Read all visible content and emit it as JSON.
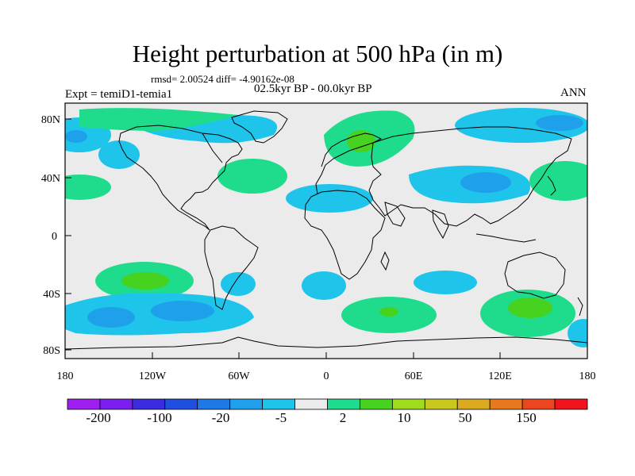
{
  "plot": {
    "title": "Height perturbation at 500 hPa (in m)",
    "stats": "rmsd= 2.00524  diff= -4.90162e-08",
    "experiment": "Expt = temiD1-temia1",
    "period": "02.5kyr BP - 00.0kyr BP",
    "season": "ANN"
  },
  "axes": {
    "lat_labels": [
      "80N",
      "40N",
      "0",
      "40S",
      "80S"
    ],
    "lon_labels": [
      "180",
      "120W",
      "60W",
      "0",
      "60E",
      "120E",
      "180"
    ]
  },
  "colorbar": {
    "labels": [
      "-200",
      "-100",
      "-20",
      "-5",
      "2",
      "10",
      "50",
      "150"
    ],
    "colors": [
      "#9f1ff0",
      "#7a1fef",
      "#3c2ce0",
      "#1f4fe0",
      "#1e78e6",
      "#1fa0ea",
      "#1ec4ea",
      "#ebebeb",
      "#1edc8c",
      "#46d21e",
      "#a0dc1e",
      "#c8c81e",
      "#dcaa1e",
      "#e6781e",
      "#eb461e",
      "#f0141e"
    ]
  }
}
